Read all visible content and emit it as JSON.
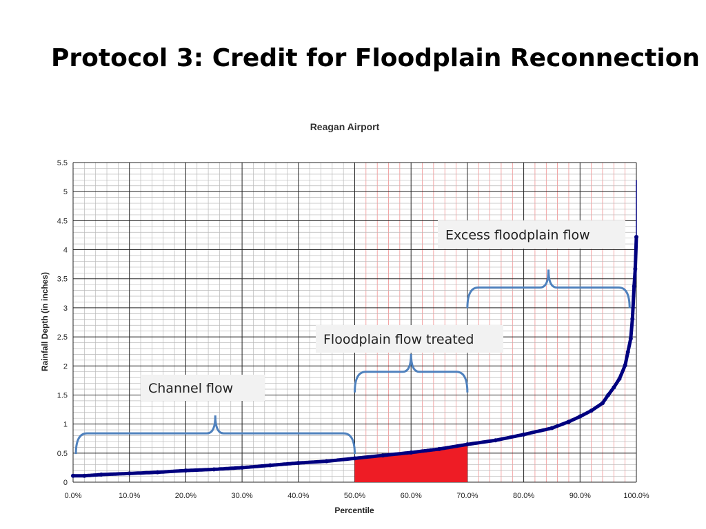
{
  "slide": {
    "title": "Protocol 3: Credit for Floodplain Reconnection"
  },
  "colors": {
    "series": "#00007f",
    "highlight": "#ee1c25",
    "brace": "#4f81bd",
    "grid_major": "#222222",
    "grid_minor": "#b8b8b8",
    "grid_red": "#f08080"
  },
  "chart_data": {
    "type": "scatter",
    "title": "Reagan Airport",
    "xlabel": "Percentile",
    "ylabel": "Rainfall Depth (in inches)",
    "xlim": [
      0,
      100
    ],
    "ylim": [
      0,
      5.5
    ],
    "x_ticks": [
      "0.0%",
      "10.0%",
      "20.0%",
      "30.0%",
      "40.0%",
      "50.0%",
      "60.0%",
      "70.0%",
      "80.0%",
      "90.0%",
      "100.0%"
    ],
    "y_ticks": [
      "0",
      "0.5",
      "1",
      "1.5",
      "2",
      "2.5",
      "3",
      "3.5",
      "4",
      "4.5",
      "5",
      "5.5"
    ],
    "grid": true,
    "series": [
      {
        "x": [
          0,
          2,
          5,
          10,
          15,
          20,
          25,
          30,
          35,
          40,
          45,
          50,
          55,
          60,
          65,
          70,
          75,
          80,
          85,
          88,
          90,
          92,
          94,
          95,
          96,
          97,
          98,
          98.5,
          99,
          99.3,
          99.6,
          99.8,
          100
        ],
        "y": [
          0.11,
          0.11,
          0.13,
          0.15,
          0.17,
          0.2,
          0.22,
          0.25,
          0.29,
          0.33,
          0.36,
          0.41,
          0.46,
          0.51,
          0.57,
          0.65,
          0.72,
          0.82,
          0.93,
          1.04,
          1.13,
          1.23,
          1.36,
          1.5,
          1.63,
          1.78,
          2.01,
          2.24,
          2.47,
          2.81,
          3.37,
          3.67,
          4.22
        ]
      }
    ],
    "highlight_region": {
      "x_from": 50,
      "x_to": 70,
      "color": "#ee1c25"
    },
    "annotations": [
      {
        "label": "Channel flow",
        "x_from": 0.5,
        "x_to": 50,
        "y": 0.84
      },
      {
        "label": "Floodplain flow treated",
        "x_from": 50,
        "x_to": 70,
        "y": 1.9
      },
      {
        "label": "Excess floodplain flow",
        "x_from": 70,
        "x_to": 98.8,
        "y": 3.35
      }
    ]
  }
}
